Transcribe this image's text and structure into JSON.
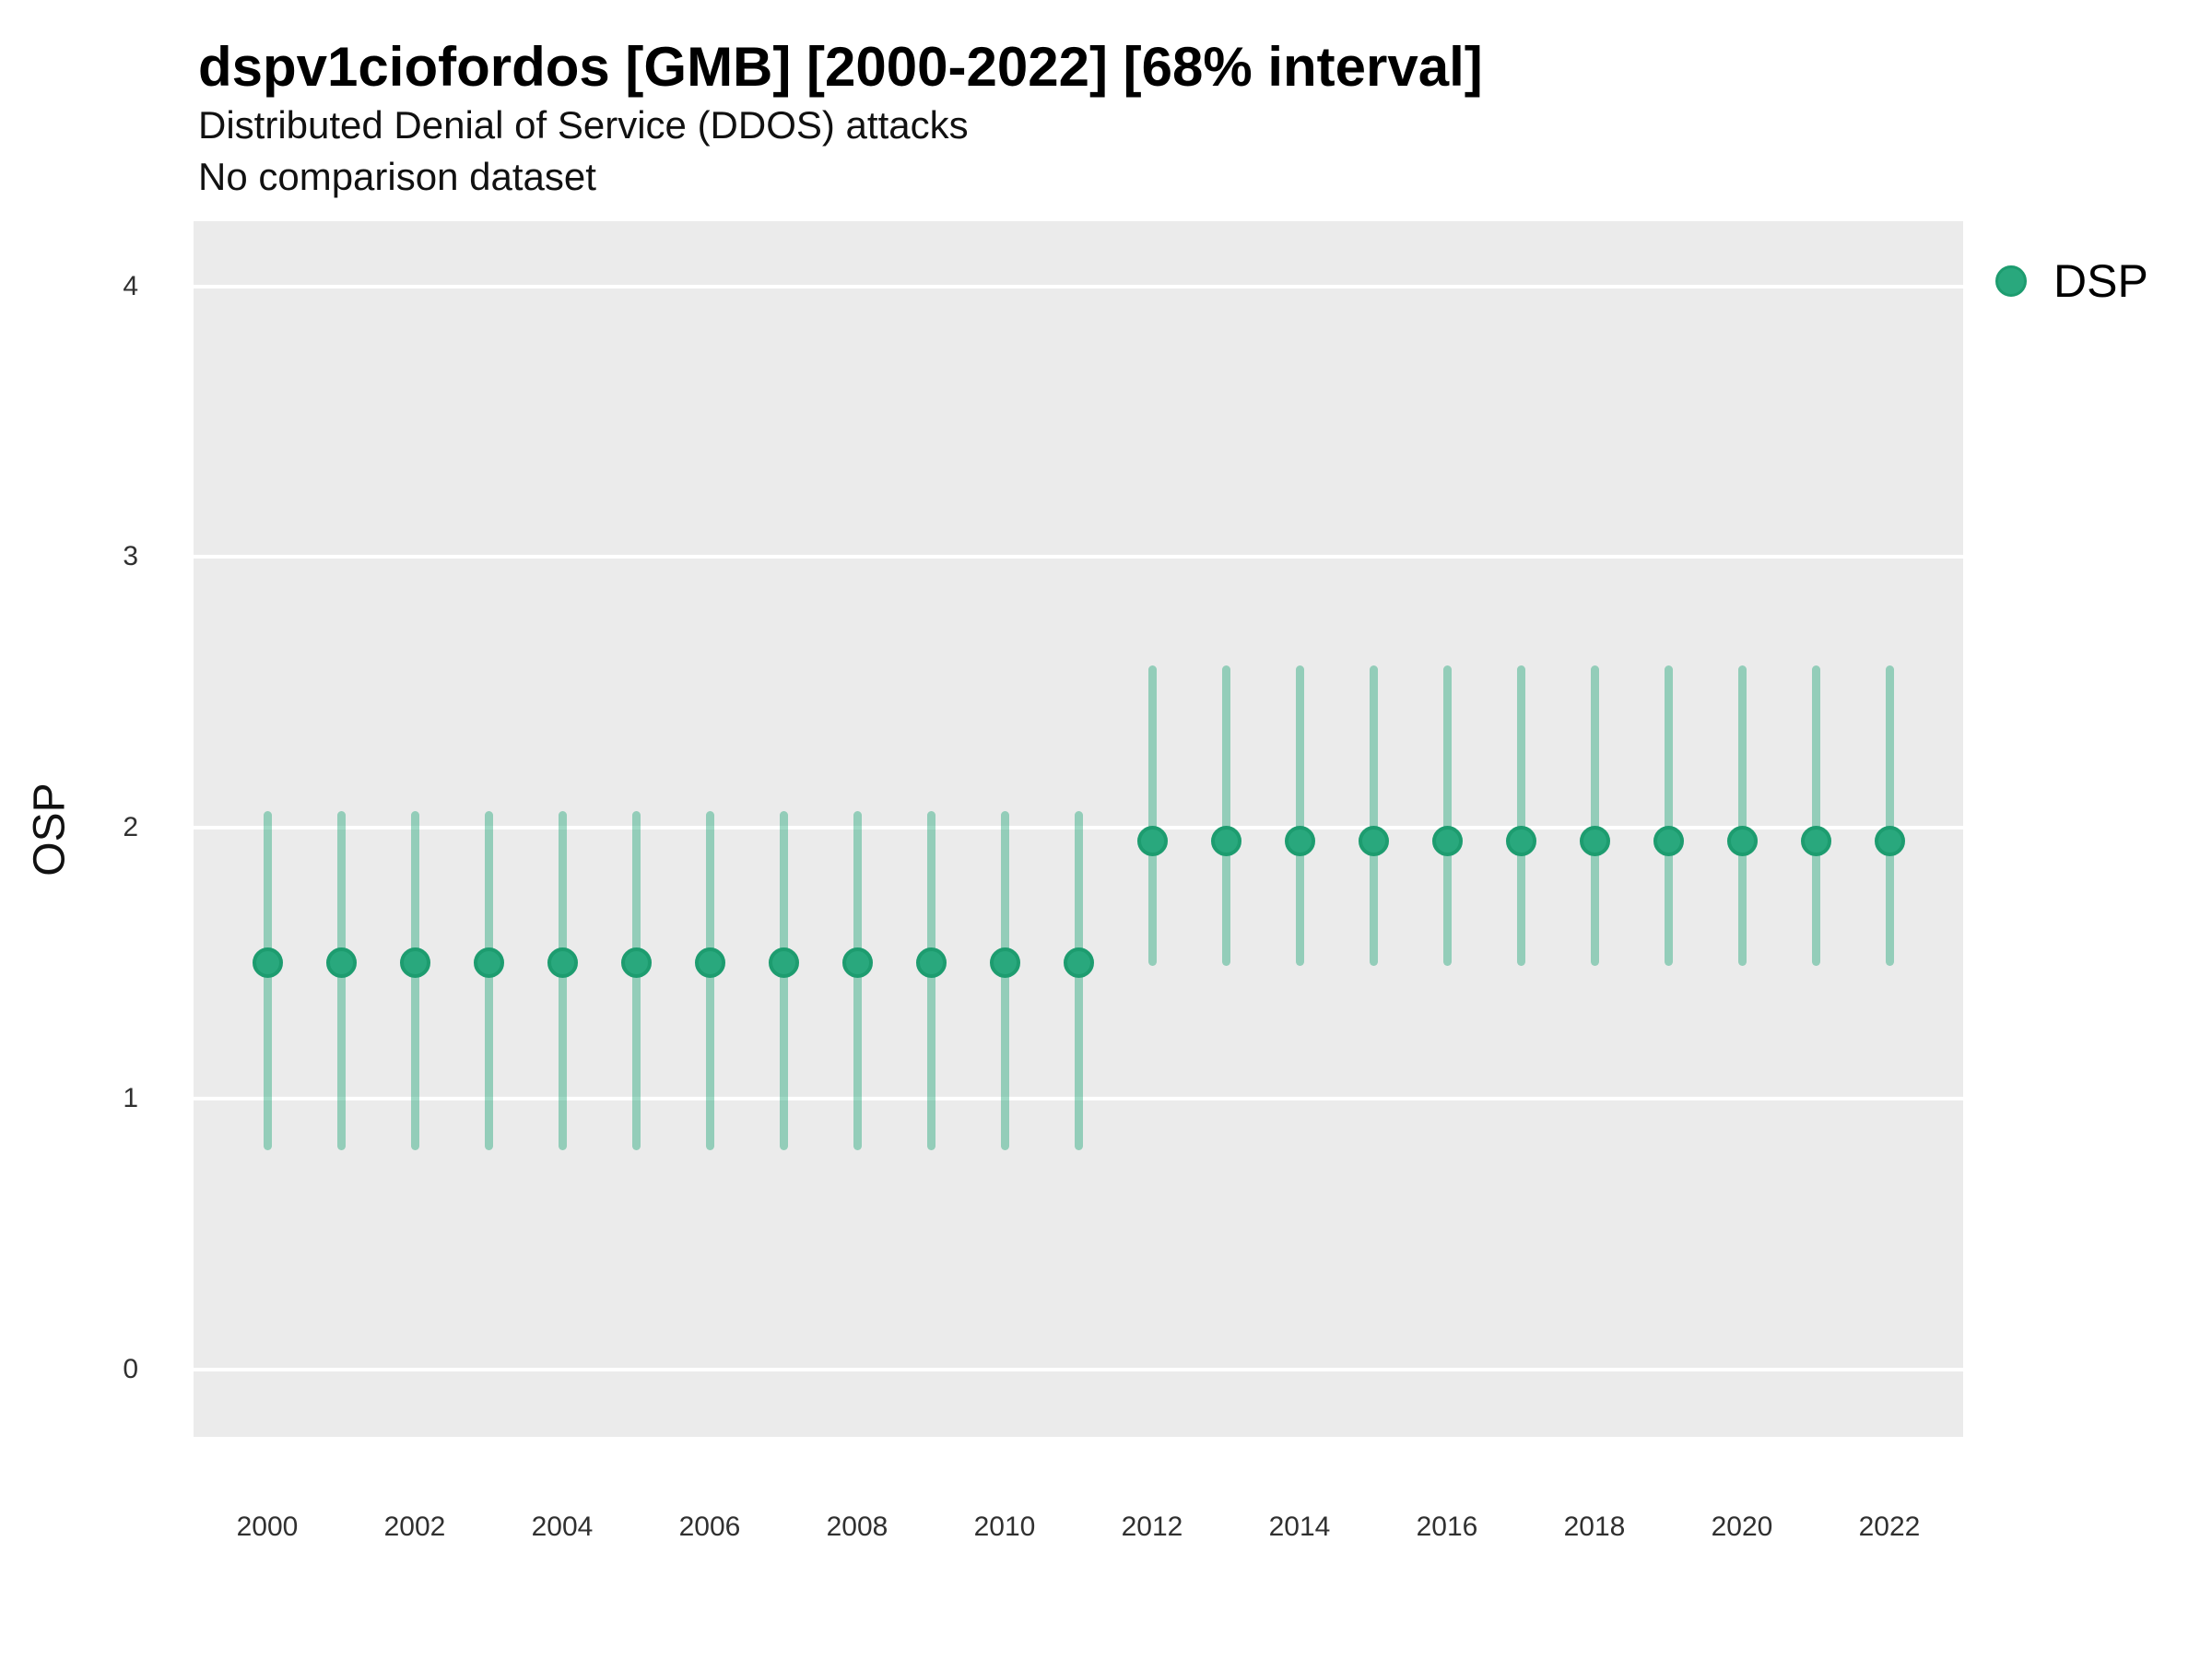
{
  "header": {
    "title": "dspv1ciofordos [GMB] [2000-2022] [68% interval]",
    "subtitle": "Distributed Denial of Service (DDOS) attacks",
    "note": "No comparison dataset"
  },
  "legend": {
    "position": "right",
    "items": [
      {
        "label": "DSP",
        "color": "#29a87d"
      }
    ]
  },
  "chart_data": {
    "type": "scatter",
    "title": "dspv1ciofordos [GMB] [2000-2022] [68% interval]",
    "subtitle": "Distributed Denial of Service (DDOS) attacks",
    "note": "No comparison dataset",
    "xlabel": "",
    "ylabel": "OSP",
    "interval": "68%",
    "grid": "horizontal-major-only",
    "legend_position": "right",
    "x_range": [
      1999,
      2023
    ],
    "y_range": [
      -0.25,
      4.24
    ],
    "x_ticks": [
      2000,
      2002,
      2004,
      2006,
      2008,
      2010,
      2012,
      2014,
      2016,
      2018,
      2020,
      2022
    ],
    "y_ticks": [
      0,
      1,
      2,
      3,
      4
    ],
    "x": [
      2000,
      2001,
      2002,
      2003,
      2004,
      2005,
      2006,
      2007,
      2008,
      2009,
      2010,
      2011,
      2012,
      2013,
      2014,
      2015,
      2016,
      2017,
      2018,
      2019,
      2020,
      2021,
      2022
    ],
    "series": [
      {
        "name": "DSP",
        "mid": [
          1.5,
          1.5,
          1.5,
          1.5,
          1.5,
          1.5,
          1.5,
          1.5,
          1.5,
          1.5,
          1.5,
          1.5,
          1.95,
          1.95,
          1.95,
          1.95,
          1.95,
          1.95,
          1.95,
          1.95,
          1.95,
          1.95,
          1.95
        ],
        "lo": [
          0.81,
          0.81,
          0.81,
          0.81,
          0.81,
          0.81,
          0.81,
          0.81,
          0.81,
          0.81,
          0.81,
          0.81,
          1.49,
          1.49,
          1.49,
          1.49,
          1.49,
          1.49,
          1.49,
          1.49,
          1.49,
          1.49,
          1.49
        ],
        "hi": [
          2.06,
          2.06,
          2.06,
          2.06,
          2.06,
          2.06,
          2.06,
          2.06,
          2.06,
          2.06,
          2.06,
          2.06,
          2.6,
          2.6,
          2.6,
          2.6,
          2.6,
          2.6,
          2.6,
          2.6,
          2.6,
          2.6,
          2.6
        ]
      }
    ],
    "colors": {
      "marker_fill": "#29a87d",
      "marker_edge": "#1d9c6f",
      "error_bar": "rgba(41,168,125,0.45)",
      "panel_bg": "#ebebeb",
      "gridline": "#ffffff"
    }
  }
}
